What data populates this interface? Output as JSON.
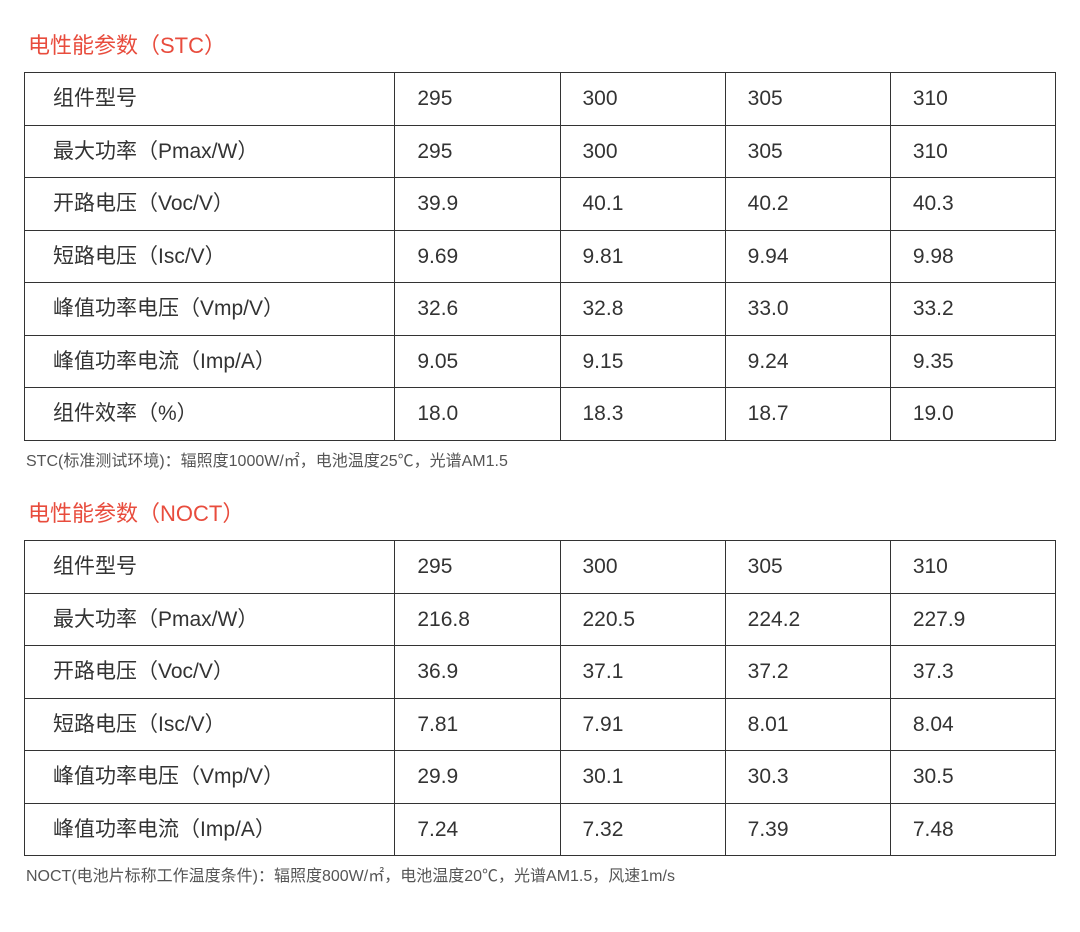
{
  "stc": {
    "title": "电性能参数（STC）",
    "columns": [
      "组件型号",
      "295",
      "300",
      "305",
      "310"
    ],
    "rows": [
      {
        "label": "最大功率（Pmax/W）",
        "vals": [
          "295",
          "300",
          "305",
          "310"
        ]
      },
      {
        "label": "开路电压（Voc/V）",
        "vals": [
          "39.9",
          "40.1",
          "40.2",
          "40.3"
        ]
      },
      {
        "label": "短路电压（Isc/V）",
        "vals": [
          "9.69",
          "9.81",
          "9.94",
          "9.98"
        ]
      },
      {
        "label": "峰值功率电压（Vmp/V）",
        "vals": [
          "32.6",
          "32.8",
          "33.0",
          "33.2"
        ]
      },
      {
        "label": "峰值功率电流（Imp/A）",
        "vals": [
          "9.05",
          "9.15",
          "9.24",
          "9.35"
        ]
      },
      {
        "label": "组件效率（%）",
        "vals": [
          "18.0",
          "18.3",
          "18.7",
          "19.0"
        ]
      }
    ],
    "footnote": "STC(标准测试环境)：辐照度1000W/㎡，电池温度25℃，光谱AM1.5"
  },
  "noct": {
    "title": "电性能参数（NOCT）",
    "columns": [
      "组件型号",
      "295",
      "300",
      "305",
      "310"
    ],
    "rows": [
      {
        "label": "最大功率（Pmax/W）",
        "vals": [
          "216.8",
          "220.5",
          "224.2",
          "227.9"
        ]
      },
      {
        "label": "开路电压（Voc/V）",
        "vals": [
          "36.9",
          "37.1",
          "37.2",
          "37.3"
        ]
      },
      {
        "label": "短路电压（Isc/V）",
        "vals": [
          "7.81",
          "7.91",
          "8.01",
          "8.04"
        ]
      },
      {
        "label": "峰值功率电压（Vmp/V）",
        "vals": [
          "29.9",
          "30.1",
          "30.3",
          "30.5"
        ]
      },
      {
        "label": "峰值功率电流（Imp/A）",
        "vals": [
          "7.24",
          "7.32",
          "7.39",
          "7.48"
        ]
      }
    ],
    "footnote": "NOCT(电池片标称工作温度条件)：辐照度800W/㎡，电池温度20℃，光谱AM1.5，风速1m/s"
  },
  "style": {
    "title_color": "#e84c3d",
    "border_color": "#333333",
    "text_color": "#333333",
    "footnote_color": "#555555",
    "title_fontsize": 22,
    "cell_fontsize": 21,
    "footnote_fontsize": 16,
    "label_col_width": 370,
    "val_col_width": 165,
    "background_color": "#ffffff"
  }
}
